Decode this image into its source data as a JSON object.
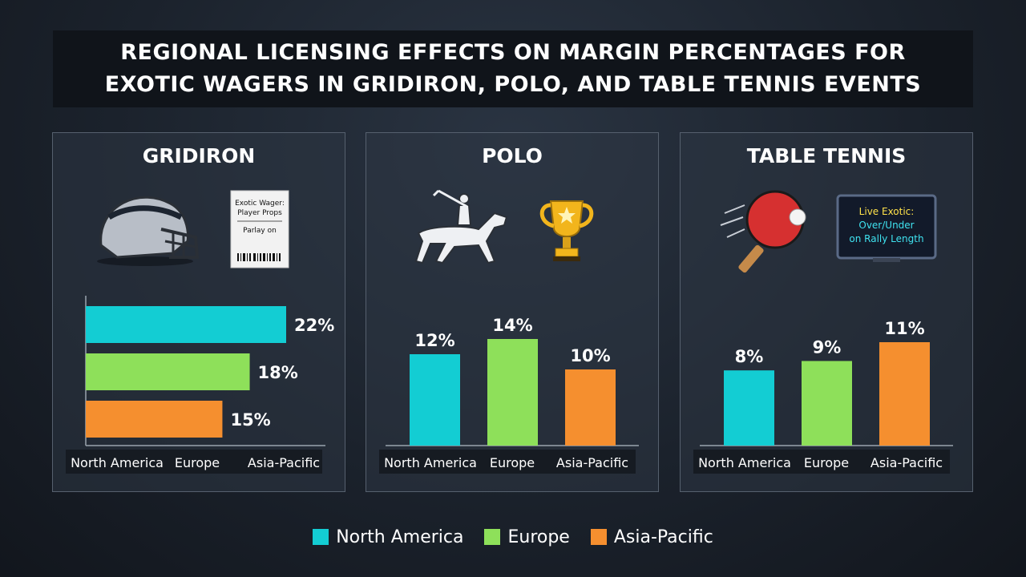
{
  "title_line1": "REGIONAL LICENSING EFFECTS ON MARGIN PERCENTAGES FOR",
  "title_line2": "EXOTIC WAGERS IN GRIDIRON, POLO, AND TABLE TENNIS EVENTS",
  "colors": {
    "north_america": "#13cdd3",
    "europe": "#8ee05a",
    "asia_pacific": "#f58f2f"
  },
  "panels": [
    {
      "title": "GRIDIRON",
      "icons": [
        "football-helmet-icon",
        "wager-ticket-icon"
      ],
      "ticket_line1": "Exotic Wager:",
      "ticket_line2": "Player Props",
      "ticket_line3": "Parlay on"
    },
    {
      "title": "POLO",
      "icons": [
        "polo-player-icon",
        "trophy-icon"
      ]
    },
    {
      "title": "TABLE TENNIS",
      "icons": [
        "ping-pong-paddle-icon",
        "tv-screen-icon"
      ],
      "tv_line1": "Live Exotic:",
      "tv_line2": "Over/Under",
      "tv_line3": "on Rally Length"
    }
  ],
  "legend": [
    "North America",
    "Europe",
    "Asia-Pacific"
  ],
  "chart_data": [
    {
      "type": "bar",
      "orientation": "horizontal",
      "title": "GRIDIRON",
      "categories": [
        "North America",
        "Europe",
        "Asia-Pacific"
      ],
      "values": [
        22,
        18,
        15
      ],
      "labels": [
        "22%",
        "18%",
        "15%"
      ],
      "unit": "%"
    },
    {
      "type": "bar",
      "orientation": "vertical",
      "title": "POLO",
      "categories": [
        "North America",
        "Europe",
        "Asia-Pacific"
      ],
      "values": [
        12,
        14,
        10
      ],
      "labels": [
        "12%",
        "14%",
        "10%"
      ],
      "unit": "%"
    },
    {
      "type": "bar",
      "orientation": "vertical",
      "title": "TABLE TENNIS",
      "categories": [
        "North America",
        "Europe",
        "Asia-Pacific"
      ],
      "values": [
        8,
        9,
        11
      ],
      "labels": [
        "8%",
        "9%",
        "11%"
      ],
      "unit": "%"
    }
  ]
}
